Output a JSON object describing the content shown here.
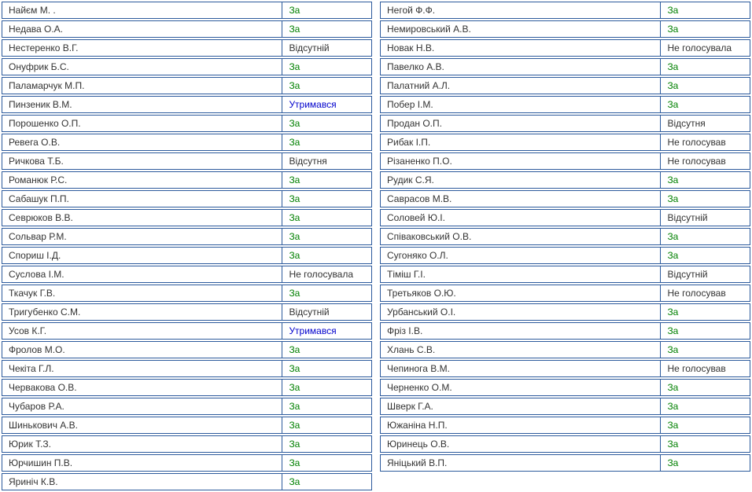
{
  "voteColors": {
    "За": "vote-za",
    "Утримався": "vote-abstain",
    "Відсутній": "vote-absent",
    "Відсутня": "vote-absent",
    "Не голосував": "vote-novote",
    "Не голосувала": "vote-novote"
  },
  "leftColumn": [
    {
      "name": "Найєм М. .",
      "vote": "За"
    },
    {
      "name": "Недава О.А.",
      "vote": "За"
    },
    {
      "name": "Нестеренко В.Г.",
      "vote": "Відсутній"
    },
    {
      "name": "Онуфрик Б.С.",
      "vote": "За"
    },
    {
      "name": "Паламарчук М.П.",
      "vote": "За"
    },
    {
      "name": "Пинзеник В.М.",
      "vote": "Утримався"
    },
    {
      "name": "Порошенко О.П.",
      "vote": "За"
    },
    {
      "name": "Ревега О.В.",
      "vote": "За"
    },
    {
      "name": "Ричкова Т.Б.",
      "vote": "Відсутня"
    },
    {
      "name": "Романюк Р.С.",
      "vote": "За"
    },
    {
      "name": "Сабашук П.П.",
      "vote": "За"
    },
    {
      "name": "Севрюков В.В.",
      "vote": "За"
    },
    {
      "name": "Сольвар Р.М.",
      "vote": "За"
    },
    {
      "name": "Спориш І.Д.",
      "vote": "За"
    },
    {
      "name": "Суслова І.М.",
      "vote": "Не голосувала"
    },
    {
      "name": "Ткачук Г.В.",
      "vote": "За"
    },
    {
      "name": "Тригубенко С.М.",
      "vote": "Відсутній"
    },
    {
      "name": "Усов К.Г.",
      "vote": "Утримався"
    },
    {
      "name": "Фролов М.О.",
      "vote": "За"
    },
    {
      "name": "Чекіта Г.Л.",
      "vote": "За"
    },
    {
      "name": "Червакова О.В.",
      "vote": "За"
    },
    {
      "name": "Чубаров Р.А.",
      "vote": "За"
    },
    {
      "name": "Шинькович А.В.",
      "vote": "За"
    },
    {
      "name": "Юрик Т.З.",
      "vote": "За"
    },
    {
      "name": "Юрчишин П.В.",
      "vote": "За"
    },
    {
      "name": "Яриніч К.В.",
      "vote": "За"
    }
  ],
  "rightColumn": [
    {
      "name": "Негой Ф.Ф.",
      "vote": "За"
    },
    {
      "name": "Немировський А.В.",
      "vote": "За"
    },
    {
      "name": "Новак Н.В.",
      "vote": "Не голосувала"
    },
    {
      "name": "Павелко А.В.",
      "vote": "За"
    },
    {
      "name": "Палатний А.Л.",
      "vote": "За"
    },
    {
      "name": "Побер І.М.",
      "vote": "За"
    },
    {
      "name": "Продан О.П.",
      "vote": "Відсутня"
    },
    {
      "name": "Рибак І.П.",
      "vote": "Не голосував"
    },
    {
      "name": "Різаненко П.О.",
      "vote": "Не голосував"
    },
    {
      "name": "Рудик С.Я.",
      "vote": "За"
    },
    {
      "name": "Саврасов М.В.",
      "vote": "За"
    },
    {
      "name": "Соловей Ю.І.",
      "vote": "Відсутній"
    },
    {
      "name": "Співаковський О.В.",
      "vote": "За"
    },
    {
      "name": "Сугоняко О.Л.",
      "vote": "За"
    },
    {
      "name": "Тіміш Г.І.",
      "vote": "Відсутній"
    },
    {
      "name": "Третьяков О.Ю.",
      "vote": "Не голосував"
    },
    {
      "name": "Урбанський О.І.",
      "vote": "За"
    },
    {
      "name": "Фріз І.В.",
      "vote": "За"
    },
    {
      "name": "Хлань С.В.",
      "vote": "За"
    },
    {
      "name": "Чепинога В.М.",
      "vote": "Не голосував"
    },
    {
      "name": "Черненко О.М.",
      "vote": "За"
    },
    {
      "name": "Шверк Г.А.",
      "vote": "За"
    },
    {
      "name": "Южаніна Н.П.",
      "vote": "За"
    },
    {
      "name": "Юринець О.В.",
      "vote": "За"
    },
    {
      "name": "Яніцький В.П.",
      "vote": "За"
    }
  ]
}
